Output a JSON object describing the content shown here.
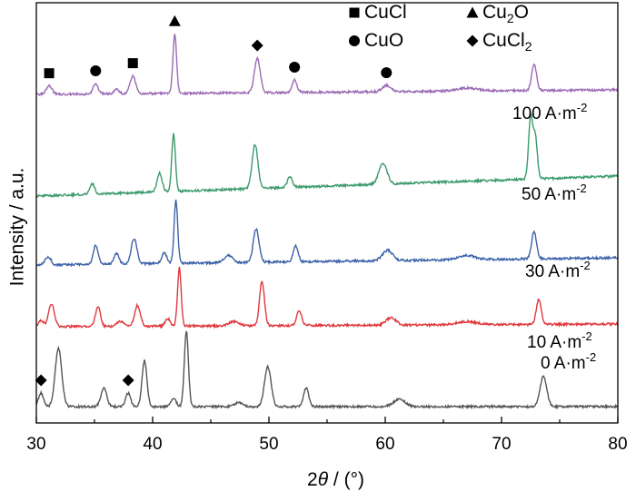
{
  "chart_data": {
    "type": "line",
    "title": "",
    "xlabel": {
      "prefix": "2",
      "symbol": "θ",
      "suffix": " / (°)"
    },
    "ylabel": "Intensity / a.u.",
    "xlim": [
      30,
      80
    ],
    "x_ticks": [
      "30",
      "40",
      "50",
      "60",
      "70",
      "80"
    ],
    "y_ticks": [],
    "grid": false,
    "legend_position": "top-right",
    "legend": [
      {
        "marker": "square",
        "label": "CuCl",
        "color": "#000000"
      },
      {
        "marker": "triangle",
        "label": "Cu",
        "sub": "2",
        "label_tail": "O",
        "color": "#000000"
      },
      {
        "marker": "circle",
        "label": "CuO",
        "color": "#000000"
      },
      {
        "marker": "diamond",
        "label": "CuCl",
        "sub": "2",
        "label_tail": "",
        "color": "#000000"
      }
    ],
    "series": [
      {
        "name": "0 A·m-2",
        "label_main": "0 A·m",
        "label_sup": "-2",
        "color": "#555555",
        "peaks": [
          {
            "x": 30.4,
            "h": 0.13,
            "w": 0.3
          },
          {
            "x": 31.9,
            "h": 0.56,
            "w": 0.4
          },
          {
            "x": 35.8,
            "h": 0.18,
            "w": 0.35
          },
          {
            "x": 37.9,
            "h": 0.13,
            "w": 0.3
          },
          {
            "x": 39.3,
            "h": 0.44,
            "w": 0.3
          },
          {
            "x": 41.8,
            "h": 0.08,
            "w": 0.3
          },
          {
            "x": 42.9,
            "h": 0.72,
            "w": 0.25
          },
          {
            "x": 47.4,
            "h": 0.04,
            "w": 0.5
          },
          {
            "x": 49.9,
            "h": 0.38,
            "w": 0.4
          },
          {
            "x": 53.2,
            "h": 0.18,
            "w": 0.3
          },
          {
            "x": 61.2,
            "h": 0.07,
            "w": 0.7
          },
          {
            "x": 73.6,
            "h": 0.29,
            "w": 0.4
          }
        ]
      },
      {
        "name": "10 A·m-2",
        "label_main": "10 A·m",
        "label_sup": "-2",
        "color": "#e0393d",
        "peaks": [
          {
            "x": 30.4,
            "h": 0.06,
            "w": 0.3
          },
          {
            "x": 31.3,
            "h": 0.22,
            "w": 0.35
          },
          {
            "x": 35.3,
            "h": 0.19,
            "w": 0.3
          },
          {
            "x": 37.2,
            "h": 0.05,
            "w": 0.4
          },
          {
            "x": 38.7,
            "h": 0.2,
            "w": 0.35
          },
          {
            "x": 41.3,
            "h": 0.07,
            "w": 0.3
          },
          {
            "x": 42.3,
            "h": 0.56,
            "w": 0.22
          },
          {
            "x": 47.0,
            "h": 0.04,
            "w": 0.6
          },
          {
            "x": 49.4,
            "h": 0.43,
            "w": 0.3
          },
          {
            "x": 52.6,
            "h": 0.14,
            "w": 0.3
          },
          {
            "x": 60.5,
            "h": 0.07,
            "w": 0.6
          },
          {
            "x": 67.0,
            "h": 0.03,
            "w": 1.2
          },
          {
            "x": 73.2,
            "h": 0.24,
            "w": 0.3
          }
        ]
      },
      {
        "name": "30 A·m-2",
        "label_main": "30 A·m",
        "label_sup": "-2",
        "color": "#3c62a8",
        "peaks": [
          {
            "x": 31.0,
            "h": 0.08,
            "w": 0.35
          },
          {
            "x": 35.1,
            "h": 0.18,
            "w": 0.3
          },
          {
            "x": 36.9,
            "h": 0.1,
            "w": 0.3
          },
          {
            "x": 38.4,
            "h": 0.24,
            "w": 0.35
          },
          {
            "x": 41.0,
            "h": 0.1,
            "w": 0.3
          },
          {
            "x": 42.0,
            "h": 0.6,
            "w": 0.22
          },
          {
            "x": 46.5,
            "h": 0.07,
            "w": 0.5
          },
          {
            "x": 48.9,
            "h": 0.32,
            "w": 0.35
          },
          {
            "x": 52.3,
            "h": 0.15,
            "w": 0.3
          },
          {
            "x": 60.2,
            "h": 0.1,
            "w": 0.6
          },
          {
            "x": 67.0,
            "h": 0.04,
            "w": 1.0
          },
          {
            "x": 72.8,
            "h": 0.26,
            "w": 0.3
          }
        ]
      },
      {
        "name": "50 A·m-2",
        "label_main": "50 A·m",
        "label_sup": "-2",
        "color": "#3a9a6a",
        "peaks": [
          {
            "x": 34.8,
            "h": 0.1,
            "w": 0.3
          },
          {
            "x": 40.6,
            "h": 0.18,
            "w": 0.3
          },
          {
            "x": 41.8,
            "h": 0.55,
            "w": 0.22
          },
          {
            "x": 48.8,
            "h": 0.42,
            "w": 0.35
          },
          {
            "x": 51.8,
            "h": 0.1,
            "w": 0.3
          },
          {
            "x": 59.8,
            "h": 0.2,
            "w": 0.5
          },
          {
            "x": 72.5,
            "h": 0.58,
            "w": 0.25
          },
          {
            "x": 72.9,
            "h": 0.4,
            "w": 0.25
          }
        ]
      },
      {
        "name": "100 A·m-2",
        "label_main": "100 A·m",
        "label_sup": "-2",
        "color": "#9b6ab5",
        "peaks": [
          {
            "x": 31.1,
            "h": 0.08,
            "w": 0.35
          },
          {
            "x": 35.1,
            "h": 0.1,
            "w": 0.3
          },
          {
            "x": 36.9,
            "h": 0.04,
            "w": 0.3
          },
          {
            "x": 38.3,
            "h": 0.17,
            "w": 0.35
          },
          {
            "x": 41.9,
            "h": 0.57,
            "w": 0.22
          },
          {
            "x": 49.0,
            "h": 0.33,
            "w": 0.35
          },
          {
            "x": 52.2,
            "h": 0.12,
            "w": 0.3
          },
          {
            "x": 60.1,
            "h": 0.06,
            "w": 0.5
          },
          {
            "x": 67.0,
            "h": 0.03,
            "w": 1.2
          },
          {
            "x": 72.8,
            "h": 0.25,
            "w": 0.3
          }
        ]
      }
    ],
    "peak_markers": [
      {
        "series": "0 A·m-2",
        "symbol": "diamond",
        "x": 30.4
      },
      {
        "series": "0 A·m-2",
        "symbol": "diamond",
        "x": 37.9
      },
      {
        "series": "100 A·m-2",
        "symbol": "square",
        "x": 31.1
      },
      {
        "series": "100 A·m-2",
        "symbol": "circle",
        "x": 35.1
      },
      {
        "series": "100 A·m-2",
        "symbol": "square",
        "x": 38.3
      },
      {
        "series": "100 A·m-2",
        "symbol": "triangle",
        "x": 41.9
      },
      {
        "series": "100 A·m-2",
        "symbol": "diamond",
        "x": 49.0
      },
      {
        "series": "100 A·m-2",
        "symbol": "circle",
        "x": 52.2
      },
      {
        "series": "100 A·m-2",
        "symbol": "circle",
        "x": 60.1
      }
    ]
  }
}
